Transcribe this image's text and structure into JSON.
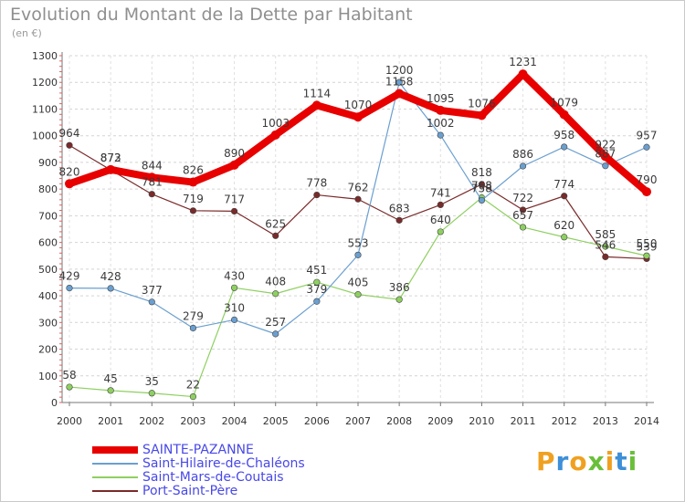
{
  "title": "Evolution du Montant de la Dette par Habitant",
  "unit": "(en €)",
  "logo": {
    "text": "Proxiti",
    "colors": [
      "#f0a020",
      "#3d8fd8",
      "#f0a020",
      "#6abf3a",
      "#f0a020",
      "#3d8fd8",
      "#6abf3a"
    ]
  },
  "chart_data": {
    "type": "line",
    "title": "Evolution du Montant de la Dette par Habitant",
    "ylabel": "(en €)",
    "xlabel": "",
    "x": [
      "2000",
      "2001",
      "2002",
      "2003",
      "2004",
      "2005",
      "2006",
      "2007",
      "2008",
      "2009",
      "2010",
      "2011",
      "2012",
      "2013",
      "2014"
    ],
    "ylim": [
      0,
      1300
    ],
    "yticks": [
      "0",
      "100",
      "200",
      "300",
      "400",
      "500",
      "600",
      "700",
      "800",
      "900",
      "1000",
      "1100",
      "1200",
      "1300"
    ],
    "grid": true,
    "legend_position": "bottom-left",
    "series": [
      {
        "name": "SAINTE-PAZANNE",
        "color": "#e80000",
        "values": [
          820,
          873,
          844,
          826,
          890,
          1003,
          1114,
          1070,
          1158,
          1095,
          1076,
          1231,
          1079,
          922,
          790
        ]
      },
      {
        "name": "Saint-Hilaire-de-Chaléons",
        "color": "#6a9fd0",
        "values": [
          429,
          428,
          377,
          279,
          310,
          257,
          379,
          553,
          1200,
          1002,
          758,
          886,
          958,
          887,
          957
        ]
      },
      {
        "name": "Saint-Mars-de-Coutais",
        "color": "#8ed060",
        "values": [
          58,
          45,
          35,
          22,
          430,
          408,
          451,
          405,
          386,
          640,
          768,
          657,
          620,
          585,
          550
        ]
      },
      {
        "name": "Port-Saint-Père",
        "color": "#7a2a2a",
        "values": [
          964,
          872,
          781,
          719,
          717,
          625,
          778,
          762,
          683,
          741,
          818,
          722,
          774,
          546,
          539
        ]
      }
    ]
  }
}
